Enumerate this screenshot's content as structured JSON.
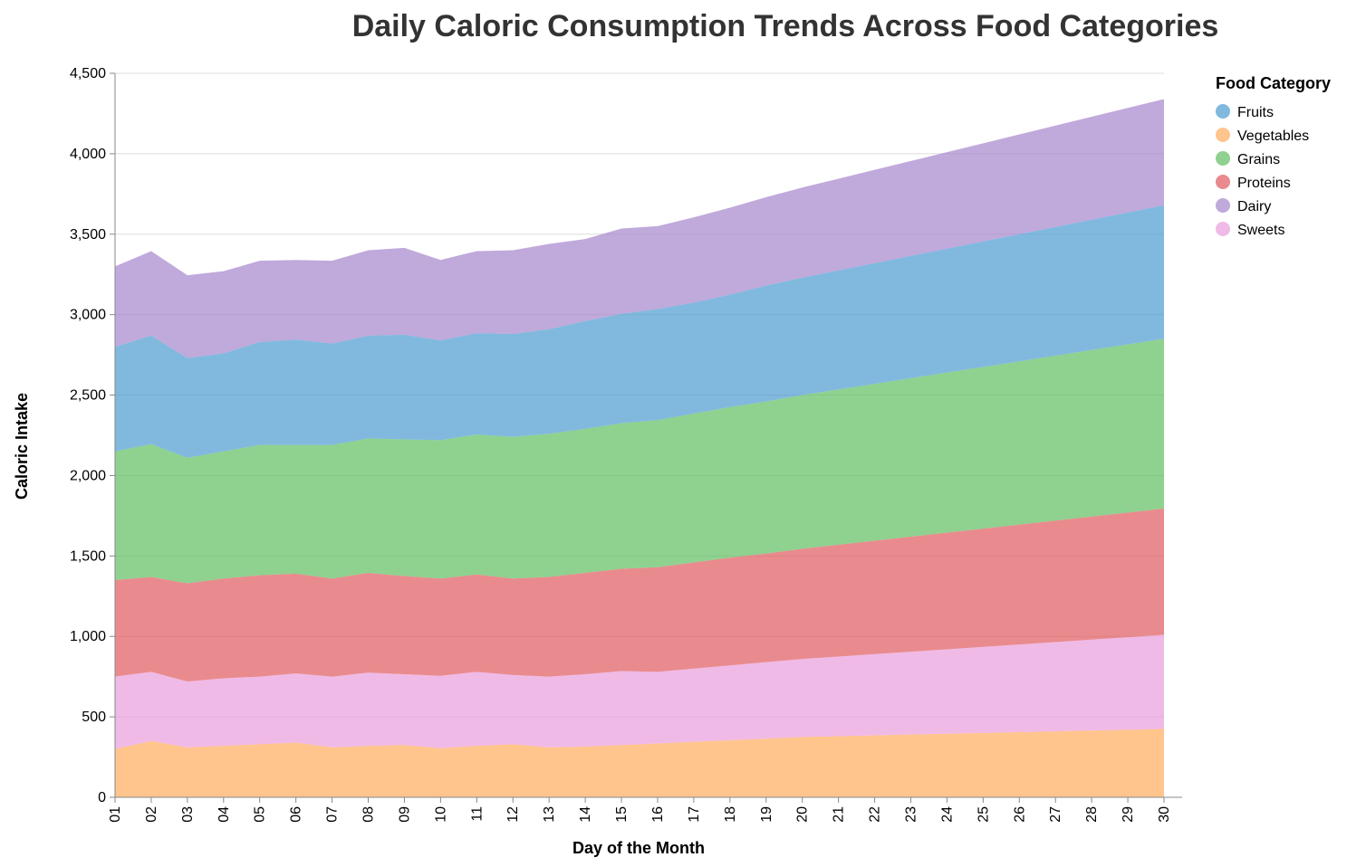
{
  "chart_data": {
    "type": "area",
    "stacked": true,
    "title": "Daily Caloric Consumption Trends Across Food Categories",
    "xlabel": "Day of the Month",
    "ylabel": "Caloric Intake",
    "ylim": [
      0,
      4500
    ],
    "yticks": [
      "0",
      "500",
      "1,000",
      "1,500",
      "2,000",
      "2,500",
      "3,000",
      "3,500",
      "4,000",
      "4,500"
    ],
    "yticks_values": [
      0,
      500,
      1000,
      1500,
      2000,
      2500,
      3000,
      3500,
      4000,
      4500
    ],
    "grid": true,
    "legend": {
      "title": "Food Category",
      "placement": "right"
    },
    "categories": [
      "01",
      "02",
      "03",
      "04",
      "05",
      "06",
      "07",
      "08",
      "09",
      "10",
      "11",
      "12",
      "13",
      "14",
      "15",
      "16",
      "17",
      "18",
      "19",
      "20",
      "21",
      "22",
      "23",
      "24",
      "25",
      "26",
      "27",
      "28",
      "29",
      "30"
    ],
    "stack_order": [
      "Vegetables",
      "Sweets",
      "Proteins",
      "Grains",
      "Fruits",
      "Dairy"
    ],
    "series": [
      {
        "name": "Fruits",
        "color": "#4c9bd0",
        "values": [
          650,
          675,
          620,
          610,
          640,
          655,
          630,
          640,
          650,
          620,
          630,
          640,
          650,
          670,
          680,
          690,
          690,
          700,
          720,
          730,
          740,
          750,
          760,
          770,
          780,
          790,
          800,
          810,
          820,
          830
        ]
      },
      {
        "name": "Vegetables",
        "color": "#ffad5d",
        "values": [
          300,
          350,
          310,
          320,
          330,
          340,
          310,
          320,
          325,
          305,
          320,
          330,
          310,
          315,
          325,
          335,
          345,
          355,
          365,
          375,
          380,
          385,
          390,
          395,
          400,
          405,
          410,
          415,
          420,
          425
        ]
      },
      {
        "name": "Grains",
        "color": "#5fbe5f",
        "values": [
          800,
          825,
          780,
          790,
          810,
          800,
          830,
          835,
          850,
          860,
          870,
          880,
          890,
          895,
          905,
          915,
          925,
          935,
          945,
          955,
          965,
          975,
          985,
          995,
          1005,
          1015,
          1025,
          1035,
          1045,
          1055
        ]
      },
      {
        "name": "Proteins",
        "color": "#e05a5e",
        "values": [
          600,
          590,
          610,
          620,
          630,
          620,
          610,
          620,
          610,
          605,
          605,
          600,
          620,
          630,
          635,
          650,
          660,
          670,
          675,
          685,
          695,
          705,
          715,
          725,
          735,
          745,
          755,
          765,
          775,
          785
        ]
      },
      {
        "name": "Dairy",
        "color": "#a585cc",
        "values": [
          500,
          525,
          515,
          510,
          505,
          495,
          515,
          530,
          540,
          500,
          510,
          520,
          530,
          510,
          530,
          515,
          530,
          540,
          550,
          560,
          570,
          580,
          590,
          600,
          610,
          620,
          630,
          640,
          650,
          660
        ]
      },
      {
        "name": "Sweets",
        "color": "#ea9cdb",
        "values": [
          450,
          430,
          410,
          420,
          420,
          430,
          440,
          455,
          440,
          450,
          460,
          430,
          440,
          450,
          460,
          445,
          455,
          465,
          475,
          485,
          495,
          505,
          515,
          525,
          535,
          545,
          555,
          565,
          575,
          585
        ]
      }
    ]
  }
}
